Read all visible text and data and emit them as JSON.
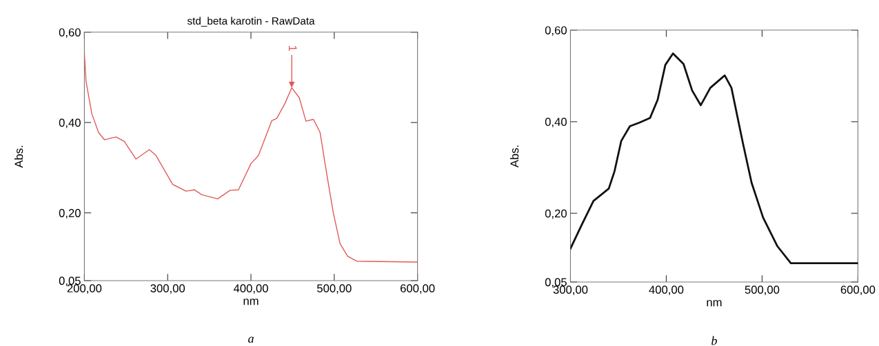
{
  "chart_data": [
    {
      "type": "line",
      "title": "std_beta karotin - RawData",
      "xlabel": "nm",
      "ylabel": "Abs.",
      "series": [
        {
          "color": "#e05a5a",
          "x": [
            200,
            202,
            209,
            217,
            224,
            238,
            248,
            262,
            278,
            286,
            306,
            322,
            332,
            341,
            360,
            375,
            385,
            400,
            409,
            425,
            431,
            441,
            449,
            458,
            466,
            475,
            483,
            491,
            499,
            507,
            516,
            527,
            600
          ],
          "values": [
            0.553,
            0.491,
            0.419,
            0.378,
            0.362,
            0.368,
            0.358,
            0.319,
            0.34,
            0.327,
            0.263,
            0.248,
            0.251,
            0.24,
            0.231,
            0.25,
            0.251,
            0.309,
            0.327,
            0.404,
            0.409,
            0.443,
            0.477,
            0.455,
            0.403,
            0.407,
            0.378,
            0.286,
            0.199,
            0.132,
            0.104,
            0.093,
            0.091
          ]
        }
      ],
      "xlim": [
        200,
        600
      ],
      "ylim": [
        0.05,
        0.6
      ],
      "xticks": [
        {
          "value": 200,
          "label": "200,00"
        },
        {
          "value": 300,
          "label": "300,00"
        },
        {
          "value": 400,
          "label": "400,00"
        },
        {
          "value": 500,
          "label": "500,00"
        },
        {
          "value": 600,
          "label": "600,00"
        }
      ],
      "yticks": [
        {
          "value": 0.05,
          "label": "0,05"
        },
        {
          "value": 0.2,
          "label": "0,20"
        },
        {
          "value": 0.4,
          "label": "0,40"
        },
        {
          "value": 0.6,
          "label": "0,60"
        }
      ],
      "annotations": [
        {
          "text": "1",
          "x": 449,
          "y": 0.477
        },
        "a"
      ],
      "grid": false,
      "legend": false
    },
    {
      "type": "line",
      "xlabel": "nm",
      "ylabel": "Abs.",
      "series": [
        {
          "color": "#111111",
          "x": [
            300,
            312,
            324,
            340,
            346,
            353,
            362,
            372,
            383,
            391,
            399,
            407,
            418,
            427,
            436,
            446,
            461,
            468,
            480,
            489,
            501,
            516,
            530,
            600
          ],
          "values": [
            0.123,
            0.176,
            0.227,
            0.254,
            0.292,
            0.358,
            0.39,
            0.398,
            0.408,
            0.448,
            0.524,
            0.549,
            0.526,
            0.468,
            0.436,
            0.474,
            0.501,
            0.474,
            0.353,
            0.267,
            0.191,
            0.128,
            0.091,
            0.091
          ]
        }
      ],
      "xlim": [
        300,
        600
      ],
      "ylim": [
        0.05,
        0.6
      ],
      "xticks": [
        {
          "value": 300,
          "label": "300,00"
        },
        {
          "value": 400,
          "label": "400,00"
        },
        {
          "value": 500,
          "label": "500,00"
        },
        {
          "value": 600,
          "label": "600,00"
        }
      ],
      "yticks": [
        {
          "value": 0.05,
          "label": "0,05"
        },
        {
          "value": 0.2,
          "label": "0,20"
        },
        {
          "value": 0.4,
          "label": "0,40"
        },
        {
          "value": 0.6,
          "label": "0,60"
        }
      ],
      "annotations": [
        "b"
      ],
      "grid": false,
      "legend": false
    }
  ]
}
